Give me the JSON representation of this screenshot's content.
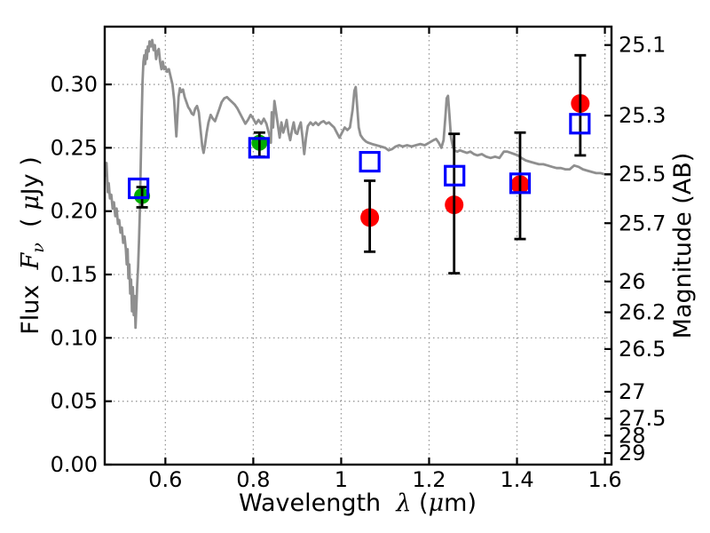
{
  "figure": {
    "background": "#ffffff",
    "text_color": "#000000"
  },
  "chart_data": {
    "type": "line+scatter",
    "title": "",
    "xlabel": "Wavelength λ (μm)",
    "ylabel_left": "Flux Fν ( μJy )",
    "ylabel_right": "Magnitude (AB)",
    "grid": {
      "show": true,
      "style": "dotted",
      "color": "#999999"
    },
    "legend": null,
    "x_axis": {
      "lim": [
        0.462,
        1.615
      ],
      "label_parts": [
        {
          "t": "Wavelength  ",
          "style": "n"
        },
        {
          "t": "λ",
          "style": "i"
        },
        {
          "t": " (",
          "style": "n"
        },
        {
          "t": "μ",
          "style": "i"
        },
        {
          "t": "m)",
          "style": "n"
        }
      ],
      "ticks": [
        {
          "v": 0.6,
          "label": "0.6"
        },
        {
          "v": 0.8,
          "label": "0.8"
        },
        {
          "v": 1.0,
          "label": "1"
        },
        {
          "v": 1.2,
          "label": "1.2"
        },
        {
          "v": 1.4,
          "label": "1.4"
        },
        {
          "v": 1.6,
          "label": "1.6"
        }
      ]
    },
    "y_axis_left": {
      "lim": [
        0,
        0.3456
      ],
      "label_parts": [
        {
          "t": "Flux  ",
          "style": "n"
        },
        {
          "t": "F",
          "style": "i"
        },
        {
          "t": "ν",
          "style": "isub"
        },
        {
          "t": "  ( ",
          "style": "n"
        },
        {
          "t": "μ",
          "style": "i"
        },
        {
          "t": "Jy )",
          "style": "n"
        }
      ],
      "ticks": [
        {
          "v": 0.0,
          "label": "0.00"
        },
        {
          "v": 0.05,
          "label": "0.05"
        },
        {
          "v": 0.1,
          "label": "0.10"
        },
        {
          "v": 0.15,
          "label": "0.15"
        },
        {
          "v": 0.2,
          "label": "0.20"
        },
        {
          "v": 0.25,
          "label": "0.25"
        },
        {
          "v": 0.3,
          "label": "0.30"
        }
      ]
    },
    "y_axis_right": {
      "label": "Magnitude (AB)",
      "ab_zeropoint_ujy": 23.9,
      "ticks": [
        {
          "label": "25.1",
          "flux": 0.3311
        },
        {
          "label": "25.3",
          "flux": 0.2754
        },
        {
          "label": "25.5",
          "flux": 0.2291
        },
        {
          "label": "25.7",
          "flux": 0.1905
        },
        {
          "label": "26",
          "flux": 0.1445
        },
        {
          "label": "26.2",
          "flux": 0.1202
        },
        {
          "label": "26.5",
          "flux": 0.0912
        },
        {
          "label": "27",
          "flux": 0.0575
        },
        {
          "label": "27.5",
          "flux": 0.0363
        },
        {
          "label": "28",
          "flux": 0.0229
        },
        {
          "label": "29",
          "flux": 0.0091
        }
      ]
    },
    "series": [
      {
        "name": "model-spectrum",
        "type": "line",
        "color": "#8f8f8f",
        "linewidth": 2.8,
        "points": [
          [
            0.462,
            0.235
          ],
          [
            0.464,
            0.228
          ],
          [
            0.466,
            0.238
          ],
          [
            0.469,
            0.215
          ],
          [
            0.471,
            0.222
          ],
          [
            0.474,
            0.21
          ],
          [
            0.477,
            0.213
          ],
          [
            0.48,
            0.202
          ],
          [
            0.483,
            0.207
          ],
          [
            0.486,
            0.196
          ],
          [
            0.489,
            0.202
          ],
          [
            0.492,
            0.19
          ],
          [
            0.495,
            0.193
          ],
          [
            0.498,
            0.183
          ],
          [
            0.501,
            0.187
          ],
          [
            0.504,
            0.175
          ],
          [
            0.507,
            0.18
          ],
          [
            0.51,
            0.17
          ],
          [
            0.512,
            0.158
          ],
          [
            0.514,
            0.17
          ],
          [
            0.516,
            0.147
          ],
          [
            0.518,
            0.158
          ],
          [
            0.52,
            0.135
          ],
          [
            0.522,
            0.146
          ],
          [
            0.524,
            0.121
          ],
          [
            0.526,
            0.14
          ],
          [
            0.528,
            0.118
          ],
          [
            0.53,
            0.133
          ],
          [
            0.532,
            0.108
          ],
          [
            0.534,
            0.125
          ],
          [
            0.536,
            0.142
          ],
          [
            0.538,
            0.156
          ],
          [
            0.54,
            0.176
          ],
          [
            0.542,
            0.2
          ],
          [
            0.544,
            0.238
          ],
          [
            0.546,
            0.272
          ],
          [
            0.548,
            0.302
          ],
          [
            0.55,
            0.318
          ],
          [
            0.552,
            0.323
          ],
          [
            0.554,
            0.316
          ],
          [
            0.556,
            0.327
          ],
          [
            0.558,
            0.32
          ],
          [
            0.56,
            0.33
          ],
          [
            0.562,
            0.326
          ],
          [
            0.564,
            0.334
          ],
          [
            0.567,
            0.33
          ],
          [
            0.57,
            0.335
          ],
          [
            0.573,
            0.327
          ],
          [
            0.576,
            0.331
          ],
          [
            0.579,
            0.32
          ],
          [
            0.582,
            0.326
          ],
          [
            0.585,
            0.328
          ],
          [
            0.588,
            0.318
          ],
          [
            0.591,
            0.312
          ],
          [
            0.594,
            0.318
          ],
          [
            0.597,
            0.312
          ],
          [
            0.6,
            0.314
          ],
          [
            0.604,
            0.31
          ],
          [
            0.608,
            0.312
          ],
          [
            0.612,
            0.306
          ],
          [
            0.616,
            0.3
          ],
          [
            0.62,
            0.288
          ],
          [
            0.623,
            0.27
          ],
          [
            0.625,
            0.259
          ],
          [
            0.627,
            0.272
          ],
          [
            0.63,
            0.29
          ],
          [
            0.633,
            0.297
          ],
          [
            0.636,
            0.294
          ],
          [
            0.64,
            0.296
          ],
          [
            0.644,
            0.29
          ],
          [
            0.648,
            0.286
          ],
          [
            0.652,
            0.282
          ],
          [
            0.656,
            0.28
          ],
          [
            0.66,
            0.277
          ],
          [
            0.664,
            0.276
          ],
          [
            0.668,
            0.281
          ],
          [
            0.672,
            0.283
          ],
          [
            0.676,
            0.278
          ],
          [
            0.68,
            0.264
          ],
          [
            0.684,
            0.251
          ],
          [
            0.687,
            0.246
          ],
          [
            0.69,
            0.252
          ],
          [
            0.694,
            0.262
          ],
          [
            0.698,
            0.27
          ],
          [
            0.703,
            0.276
          ],
          [
            0.708,
            0.273
          ],
          [
            0.713,
            0.271
          ],
          [
            0.718,
            0.276
          ],
          [
            0.723,
            0.281
          ],
          [
            0.728,
            0.286
          ],
          [
            0.734,
            0.289
          ],
          [
            0.74,
            0.29
          ],
          [
            0.746,
            0.288
          ],
          [
            0.752,
            0.286
          ],
          [
            0.758,
            0.284
          ],
          [
            0.764,
            0.281
          ],
          [
            0.77,
            0.277
          ],
          [
            0.776,
            0.273
          ],
          [
            0.782,
            0.269
          ],
          [
            0.788,
            0.272
          ],
          [
            0.794,
            0.276
          ],
          [
            0.8,
            0.273
          ],
          [
            0.806,
            0.269
          ],
          [
            0.812,
            0.272
          ],
          [
            0.818,
            0.269
          ],
          [
            0.824,
            0.273
          ],
          [
            0.83,
            0.269
          ],
          [
            0.836,
            0.261
          ],
          [
            0.84,
            0.254
          ],
          [
            0.842,
            0.278
          ],
          [
            0.845,
            0.266
          ],
          [
            0.848,
            0.287
          ],
          [
            0.852,
            0.278
          ],
          [
            0.856,
            0.268
          ],
          [
            0.86,
            0.258
          ],
          [
            0.864,
            0.27
          ],
          [
            0.868,
            0.262
          ],
          [
            0.872,
            0.266
          ],
          [
            0.876,
            0.272
          ],
          [
            0.88,
            0.262
          ],
          [
            0.884,
            0.256
          ],
          [
            0.888,
            0.264
          ],
          [
            0.892,
            0.27
          ],
          [
            0.896,
            0.262
          ],
          [
            0.9,
            0.261
          ],
          [
            0.904,
            0.266
          ],
          [
            0.908,
            0.27
          ],
          [
            0.912,
            0.258
          ],
          [
            0.916,
            0.245
          ],
          [
            0.92,
            0.258
          ],
          [
            0.924,
            0.267
          ],
          [
            0.93,
            0.27
          ],
          [
            0.936,
            0.268
          ],
          [
            0.942,
            0.27
          ],
          [
            0.948,
            0.268
          ],
          [
            0.954,
            0.27
          ],
          [
            0.96,
            0.271
          ],
          [
            0.966,
            0.269
          ],
          [
            0.972,
            0.27
          ],
          [
            0.978,
            0.268
          ],
          [
            0.984,
            0.266
          ],
          [
            0.99,
            0.262
          ],
          [
            0.996,
            0.258
          ],
          [
            1.002,
            0.262
          ],
          [
            1.008,
            0.266
          ],
          [
            1.014,
            0.264
          ],
          [
            1.02,
            0.266
          ],
          [
            1.026,
            0.28
          ],
          [
            1.03,
            0.295
          ],
          [
            1.033,
            0.298
          ],
          [
            1.036,
            0.284
          ],
          [
            1.04,
            0.266
          ],
          [
            1.044,
            0.26
          ],
          [
            1.05,
            0.257
          ],
          [
            1.056,
            0.255
          ],
          [
            1.062,
            0.254
          ],
          [
            1.07,
            0.253
          ],
          [
            1.08,
            0.252
          ],
          [
            1.09,
            0.251
          ],
          [
            1.1,
            0.25
          ],
          [
            1.108,
            0.248
          ],
          [
            1.116,
            0.249
          ],
          [
            1.124,
            0.251
          ],
          [
            1.132,
            0.252
          ],
          [
            1.14,
            0.251
          ],
          [
            1.15,
            0.252
          ],
          [
            1.16,
            0.251
          ],
          [
            1.17,
            0.252
          ],
          [
            1.18,
            0.253
          ],
          [
            1.19,
            0.252
          ],
          [
            1.2,
            0.254
          ],
          [
            1.21,
            0.256
          ],
          [
            1.216,
            0.257
          ],
          [
            1.222,
            0.254
          ],
          [
            1.228,
            0.25
          ],
          [
            1.233,
            0.256
          ],
          [
            1.237,
            0.274
          ],
          [
            1.24,
            0.289
          ],
          [
            1.243,
            0.291
          ],
          [
            1.246,
            0.277
          ],
          [
            1.25,
            0.258
          ],
          [
            1.254,
            0.251
          ],
          [
            1.258,
            0.248
          ],
          [
            1.264,
            0.247
          ],
          [
            1.27,
            0.248
          ],
          [
            1.278,
            0.247
          ],
          [
            1.286,
            0.246
          ],
          [
            1.294,
            0.247
          ],
          [
            1.302,
            0.245
          ],
          [
            1.31,
            0.244
          ],
          [
            1.32,
            0.245
          ],
          [
            1.33,
            0.243
          ],
          [
            1.34,
            0.242
          ],
          [
            1.35,
            0.243
          ],
          [
            1.36,
            0.242
          ],
          [
            1.37,
            0.247
          ],
          [
            1.378,
            0.247
          ],
          [
            1.386,
            0.246
          ],
          [
            1.394,
            0.245
          ],
          [
            1.402,
            0.244
          ],
          [
            1.41,
            0.242
          ],
          [
            1.42,
            0.24
          ],
          [
            1.43,
            0.239
          ],
          [
            1.44,
            0.238
          ],
          [
            1.45,
            0.237
          ],
          [
            1.46,
            0.237
          ],
          [
            1.47,
            0.236
          ],
          [
            1.48,
            0.235
          ],
          [
            1.49,
            0.234
          ],
          [
            1.5,
            0.234
          ],
          [
            1.51,
            0.233
          ],
          [
            1.52,
            0.233
          ],
          [
            1.53,
            0.236
          ],
          [
            1.54,
            0.235
          ],
          [
            1.55,
            0.233
          ],
          [
            1.56,
            0.232
          ],
          [
            1.57,
            0.231
          ],
          [
            1.58,
            0.23
          ],
          [
            1.59,
            0.23
          ],
          [
            1.6,
            0.229
          ],
          [
            1.615,
            0.229
          ]
        ]
      },
      {
        "name": "measured-flux-optical",
        "type": "scatter",
        "marker": "filled-circle",
        "color": "#00ad00",
        "markersize": 18,
        "points": [
          {
            "x": 0.547,
            "y": 0.212,
            "yerr_lo": 0.009,
            "yerr_hi": 0.007
          },
          {
            "x": 0.814,
            "y": 0.254,
            "yerr_lo": 0.011,
            "yerr_hi": 0.008
          }
        ]
      },
      {
        "name": "measured-flux-infrared",
        "type": "scatter",
        "marker": "filled-circle",
        "color": "#ff0000",
        "markersize": 21,
        "points": [
          {
            "x": 1.065,
            "y": 0.195,
            "yerr_lo": 0.027,
            "yerr_hi": 0.029
          },
          {
            "x": 1.257,
            "y": 0.205,
            "yerr_lo": 0.054,
            "yerr_hi": 0.056
          },
          {
            "x": 1.407,
            "y": 0.221,
            "yerr_lo": 0.043,
            "yerr_hi": 0.041
          },
          {
            "x": 1.544,
            "y": 0.285,
            "yerr_lo": 0.041,
            "yerr_hi": 0.038
          }
        ]
      },
      {
        "name": "model-photometry",
        "type": "scatter",
        "marker": "open-square",
        "color": "#0000ff",
        "markersize": 21,
        "points": [
          {
            "x": 0.539,
            "y": 0.218
          },
          {
            "x": 0.813,
            "y": 0.25
          },
          {
            "x": 1.065,
            "y": 0.239
          },
          {
            "x": 1.258,
            "y": 0.228
          },
          {
            "x": 1.407,
            "y": 0.222
          },
          {
            "x": 1.543,
            "y": 0.269
          }
        ]
      }
    ]
  }
}
